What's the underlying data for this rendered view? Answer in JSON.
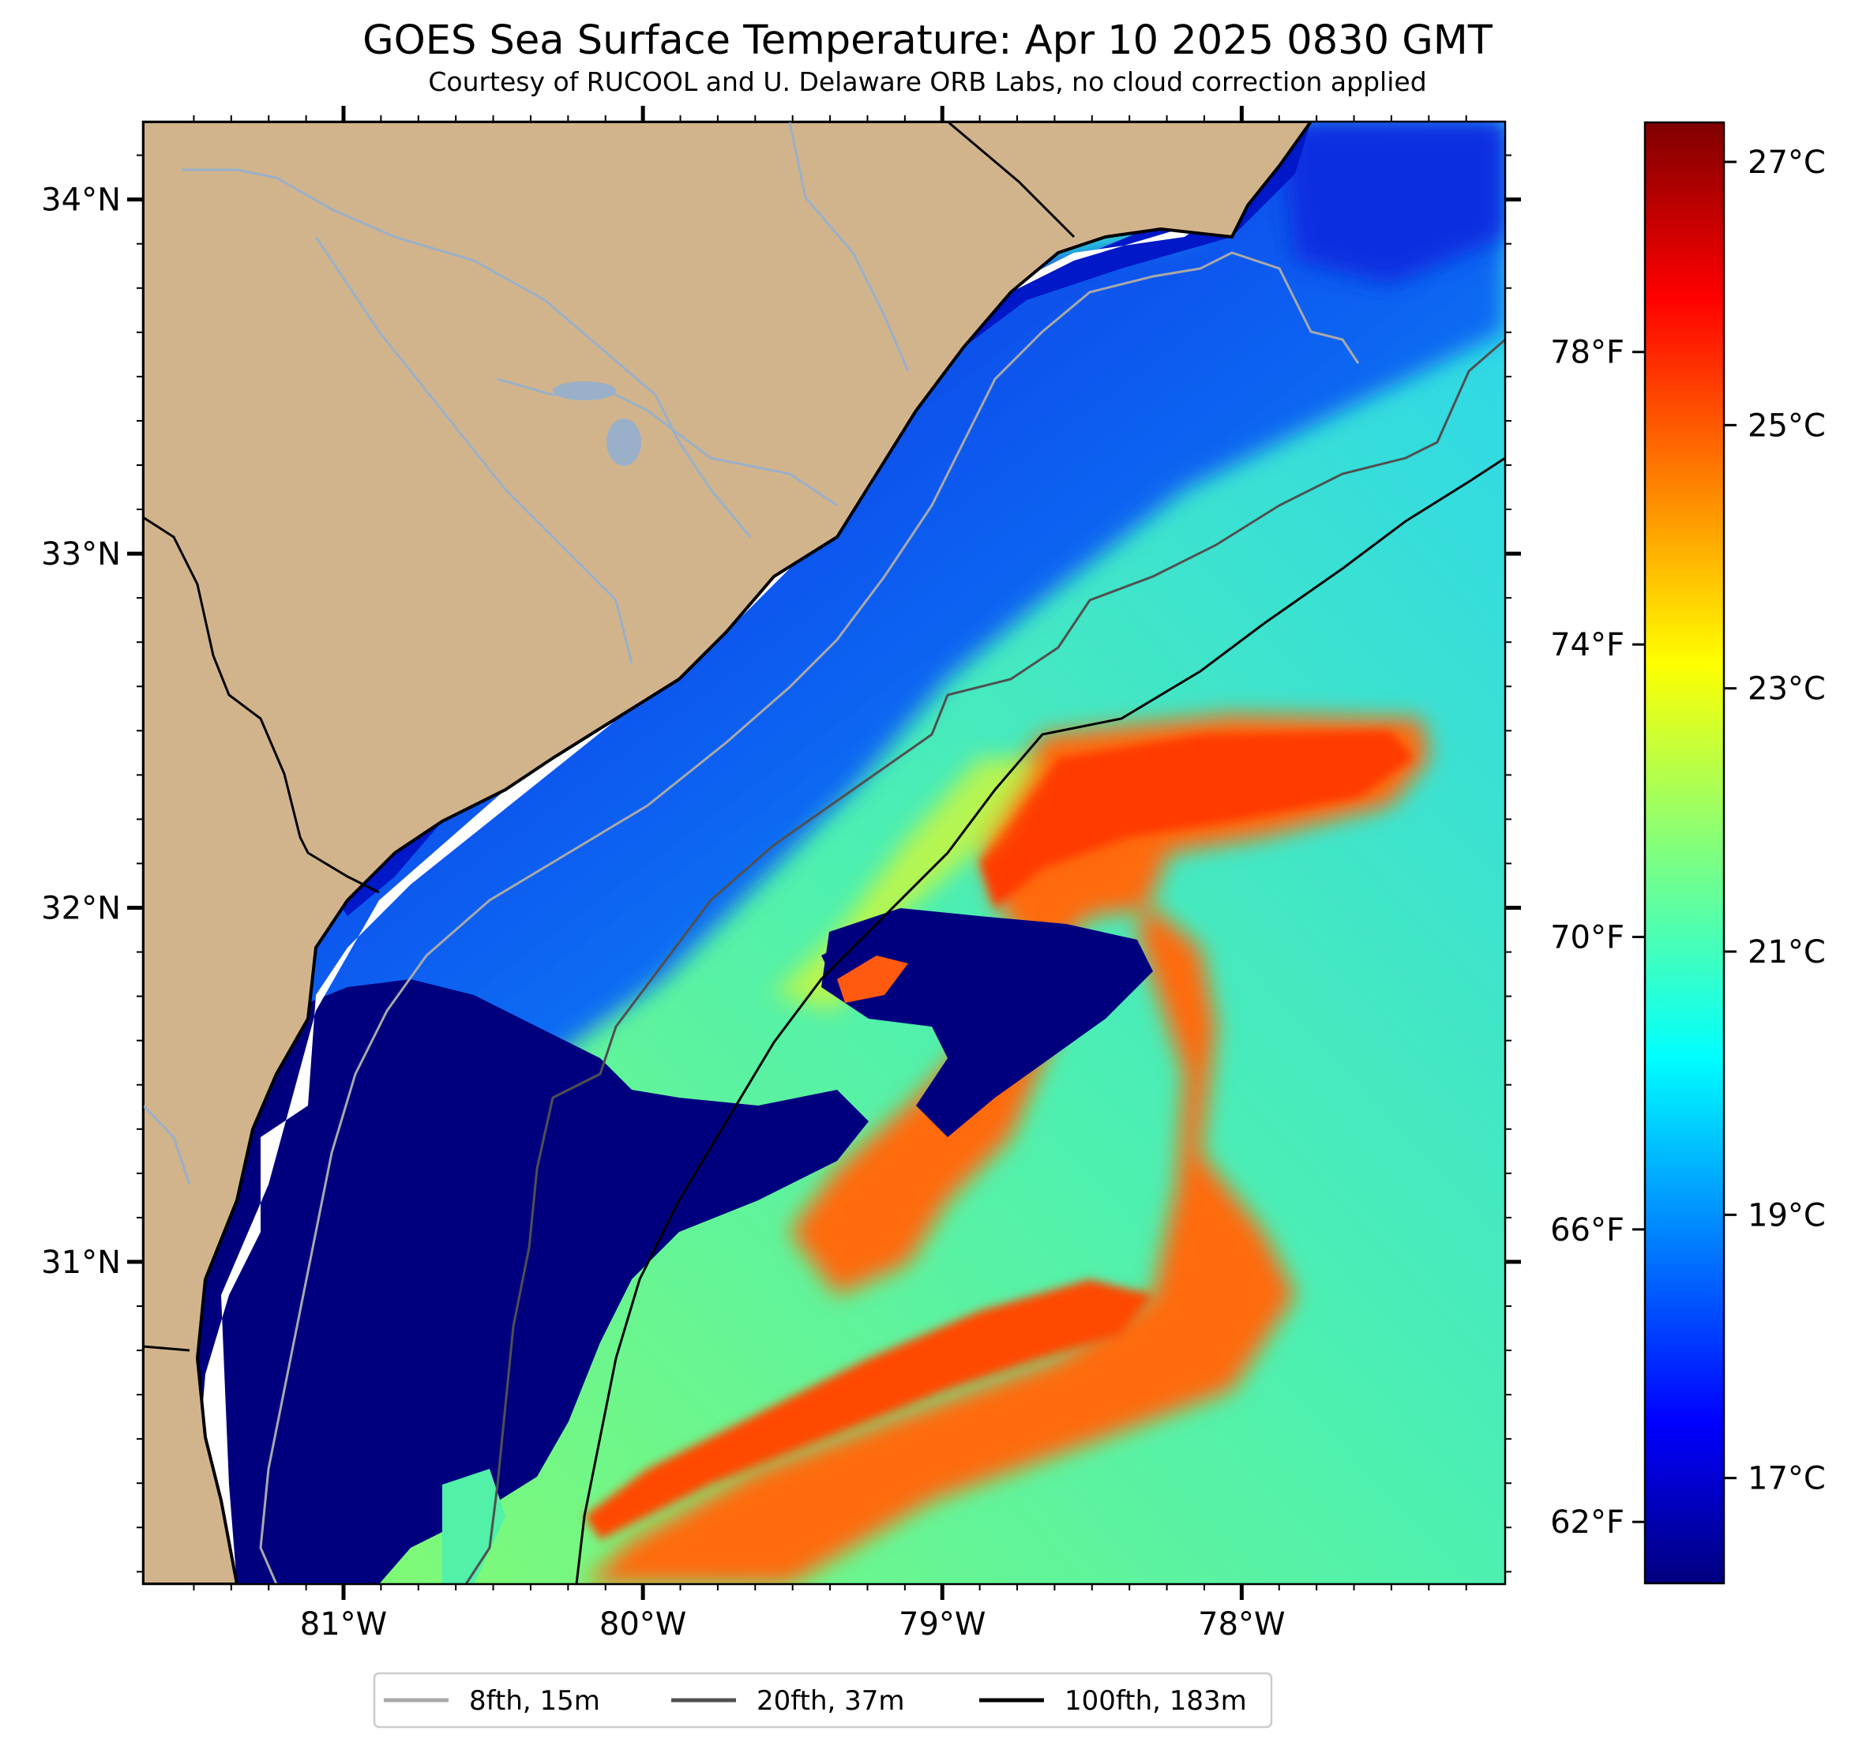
{
  "title": "GOES Sea Surface Temperature: Apr 10 2025 0830 GMT",
  "subtitle": "Courtesy of RUCOOL and U. Delaware ORB Labs, no cloud correction applied",
  "map": {
    "lon_range": [
      -81.67,
      -77.12
    ],
    "lat_range": [
      30.09,
      34.22
    ],
    "lat_labels": [
      {
        "lat": 34,
        "text": "34°N"
      },
      {
        "lat": 33,
        "text": "33°N"
      },
      {
        "lat": 32,
        "text": "32°N"
      },
      {
        "lat": 31,
        "text": "31°N"
      }
    ],
    "lon_labels": [
      {
        "lon": -81,
        "text": "81°W"
      },
      {
        "lon": -80,
        "text": "80°W"
      },
      {
        "lon": -79,
        "text": "79°W"
      },
      {
        "lon": -78,
        "text": "78°W"
      }
    ],
    "land_color": "#d2b48c",
    "no_data_color": "#ffffff",
    "cold_shelf_color": "#00007f"
  },
  "colorbar": {
    "colormap": "jet",
    "range_c": [
      16.2,
      27.3
    ],
    "celsius_labels": [
      {
        "value": 27,
        "text": "27°C"
      },
      {
        "value": 25,
        "text": "25°C"
      },
      {
        "value": 23,
        "text": "23°C"
      },
      {
        "value": 21,
        "text": "21°C"
      },
      {
        "value": 19,
        "text": "19°C"
      },
      {
        "value": 17,
        "text": "17°C"
      }
    ],
    "fahrenheit_labels": [
      {
        "value": 78,
        "text": "78°F"
      },
      {
        "value": 74,
        "text": "74°F"
      },
      {
        "value": 70,
        "text": "70°F"
      },
      {
        "value": 66,
        "text": "66°F"
      },
      {
        "value": 62,
        "text": "62°F"
      }
    ]
  },
  "legend": {
    "items": [
      {
        "label": "8fth, 15m",
        "color": "#a9a9a9"
      },
      {
        "label": "20fth, 37m",
        "color": "#505050"
      },
      {
        "label": "100fth, 183m",
        "color": "#000000"
      }
    ]
  }
}
